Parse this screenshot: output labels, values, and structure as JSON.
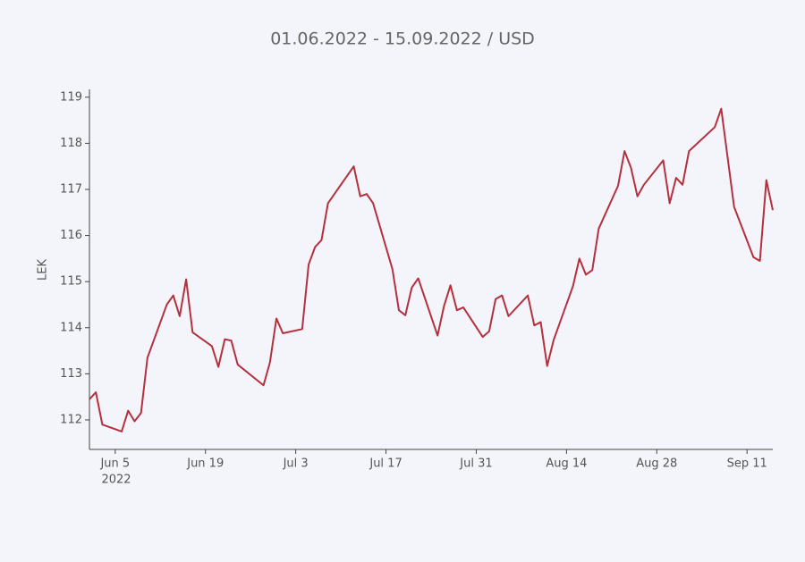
{
  "chart_data": {
    "type": "line",
    "title": "01.06.2022 - 15.09.2022 / USD",
    "y_label": "LEK",
    "x_year_label": "2022",
    "x": [
      "2022-06-01",
      "2022-06-02",
      "2022-06-03",
      "2022-06-06",
      "2022-06-07",
      "2022-06-08",
      "2022-06-09",
      "2022-06-10",
      "2022-06-13",
      "2022-06-14",
      "2022-06-15",
      "2022-06-16",
      "2022-06-17",
      "2022-06-20",
      "2022-06-21",
      "2022-06-22",
      "2022-06-23",
      "2022-06-24",
      "2022-06-28",
      "2022-06-29",
      "2022-06-30",
      "2022-07-01",
      "2022-07-04",
      "2022-07-05",
      "2022-07-06",
      "2022-07-07",
      "2022-07-08",
      "2022-07-12",
      "2022-07-13",
      "2022-07-14",
      "2022-07-15",
      "2022-07-18",
      "2022-07-19",
      "2022-07-20",
      "2022-07-21",
      "2022-07-22",
      "2022-07-25",
      "2022-07-26",
      "2022-07-27",
      "2022-07-28",
      "2022-07-29",
      "2022-08-01",
      "2022-08-02",
      "2022-08-03",
      "2022-08-04",
      "2022-08-05",
      "2022-08-08",
      "2022-08-09",
      "2022-08-10",
      "2022-08-11",
      "2022-08-12",
      "2022-08-15",
      "2022-08-16",
      "2022-08-17",
      "2022-08-18",
      "2022-08-19",
      "2022-08-22",
      "2022-08-23",
      "2022-08-24",
      "2022-08-25",
      "2022-08-26",
      "2022-08-29",
      "2022-08-30",
      "2022-08-31",
      "2022-09-01",
      "2022-09-02",
      "2022-09-06",
      "2022-09-07",
      "2022-09-09",
      "2022-09-12",
      "2022-09-13",
      "2022-09-14",
      "2022-09-15"
    ],
    "series": [
      {
        "name": "USD",
        "color": "#b5303e",
        "values": [
          112.45,
          112.6,
          111.9,
          111.75,
          112.2,
          111.97,
          112.15,
          113.35,
          114.5,
          114.7,
          114.25,
          115.05,
          113.9,
          113.6,
          113.15,
          113.75,
          113.72,
          113.2,
          112.75,
          113.25,
          114.2,
          113.88,
          113.97,
          115.37,
          115.75,
          115.9,
          116.7,
          117.5,
          116.85,
          116.9,
          116.7,
          115.27,
          114.38,
          114.27,
          114.87,
          115.07,
          113.83,
          114.47,
          114.92,
          114.38,
          114.44,
          113.8,
          113.92,
          114.62,
          114.7,
          114.25,
          114.7,
          114.05,
          114.12,
          113.17,
          113.73,
          114.9,
          115.5,
          115.15,
          115.25,
          116.15,
          117.08,
          117.83,
          117.47,
          116.85,
          117.1,
          117.63,
          116.7,
          117.25,
          117.1,
          117.83,
          118.35,
          118.75,
          116.62,
          115.53,
          115.45,
          117.2,
          116.55
        ]
      }
    ],
    "xlim": [
      "2022-06-01",
      "2022-09-15"
    ],
    "xticks": [
      {
        "value": "2022-06-05",
        "label": "Jun 5"
      },
      {
        "value": "2022-06-19",
        "label": "Jun 19"
      },
      {
        "value": "2022-07-03",
        "label": "Jul 3"
      },
      {
        "value": "2022-07-17",
        "label": "Jul 17"
      },
      {
        "value": "2022-07-31",
        "label": "Jul 31"
      },
      {
        "value": "2022-08-14",
        "label": "Aug 14"
      },
      {
        "value": "2022-08-28",
        "label": "Aug 28"
      },
      {
        "value": "2022-09-11",
        "label": "Sep 11"
      }
    ],
    "ylim": [
      111.36,
      119.17
    ],
    "yticks": [
      112,
      113,
      114,
      115,
      116,
      117,
      118,
      119
    ]
  }
}
